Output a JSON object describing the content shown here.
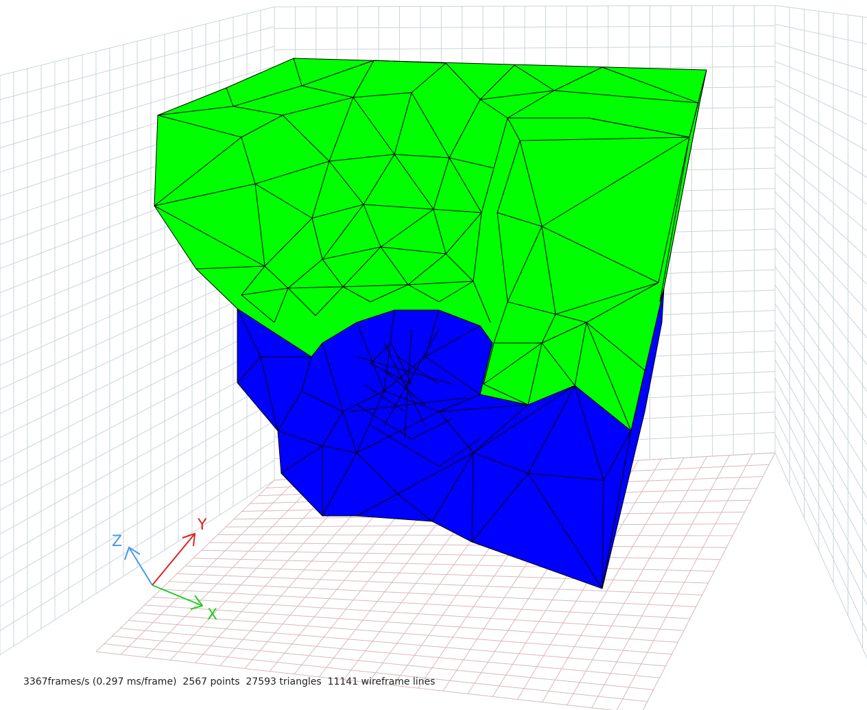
{
  "viewer": {
    "status": "3367frames/s (0.297 ms/frame)  2567 points  27593 triangles  11141 wireframe lines"
  },
  "axes": {
    "x_label": "X",
    "y_label": "Y",
    "z_label": "Z",
    "x_color": "#22cc22",
    "y_color": "#dd2222",
    "z_color": "#4499ee"
  },
  "mesh": {
    "top_color": "#00ff00",
    "side_color": "#0000ff",
    "edge_color": "#000000"
  },
  "grid": {
    "line_color": "#c8d4d8",
    "floor_line_color": "#d8b8bc"
  }
}
